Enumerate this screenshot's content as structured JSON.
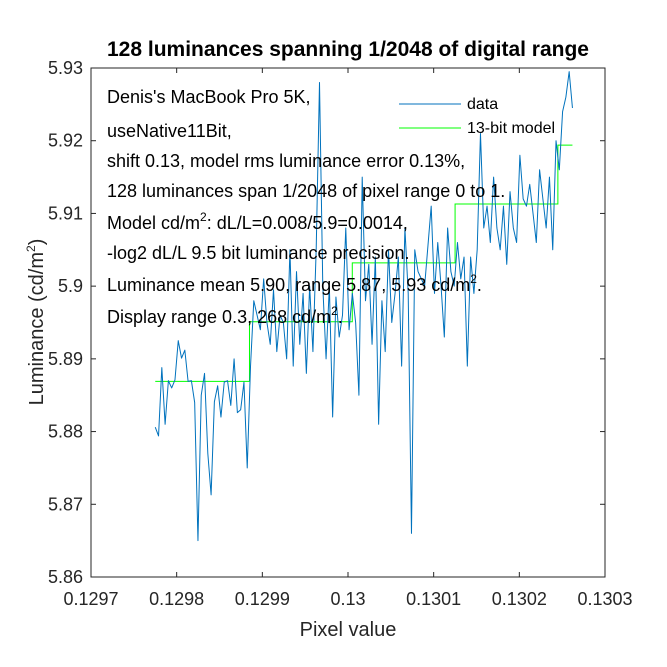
{
  "chart_data": {
    "type": "line",
    "title": "128 luminances spanning 1/2048 of digital range",
    "xlabel": "Pixel value",
    "ylabel_main": "Luminance (cd/m",
    "ylabel_sup": "2",
    "ylabel_tail": ")",
    "xlim": [
      0.1297,
      0.1303
    ],
    "ylim": [
      5.86,
      5.93
    ],
    "xticks": [
      0.1297,
      0.1298,
      0.1299,
      0.13,
      0.1301,
      0.1302,
      0.1303
    ],
    "xtick_labels": [
      "0.1297",
      "0.1298",
      "0.1299",
      "0.13",
      "0.1301",
      "0.1302",
      "0.1303"
    ],
    "yticks": [
      5.86,
      5.87,
      5.88,
      5.89,
      5.9,
      5.91,
      5.92,
      5.93
    ],
    "ytick_labels": [
      "5.86",
      "5.87",
      "5.88",
      "5.89",
      "5.9",
      "5.91",
      "5.92",
      "5.93"
    ],
    "grid": false,
    "legend_position": "top-right",
    "series": [
      {
        "name": "data",
        "color": "#0072bd",
        "x_start": 0.129775,
        "x_end": 0.130262,
        "values": [
          5.8806,
          5.8794,
          5.8888,
          5.881,
          5.887,
          5.886,
          5.8871,
          5.8925,
          5.8901,
          5.8912,
          5.8869,
          5.887,
          5.884,
          5.865,
          5.885,
          5.888,
          5.877,
          5.8713,
          5.8841,
          5.8863,
          5.882,
          5.8868,
          5.887,
          5.8836,
          5.89,
          5.8826,
          5.883,
          5.8868,
          5.875,
          5.889,
          5.898,
          5.896,
          5.894,
          5.901,
          5.895,
          5.892,
          5.8995,
          5.891,
          5.896,
          5.895,
          5.89,
          5.905,
          5.889,
          5.902,
          5.892,
          5.899,
          5.888,
          5.9,
          5.891,
          5.9052,
          5.928,
          5.9,
          5.89,
          5.9,
          5.882,
          5.8985,
          5.893,
          5.896,
          5.908,
          5.894,
          5.899,
          5.895,
          5.885,
          5.915,
          5.898,
          5.903,
          5.892,
          5.904,
          5.881,
          5.898,
          5.891,
          5.905,
          5.895,
          5.899,
          5.904,
          5.889,
          5.908,
          5.899,
          5.866,
          5.905,
          5.902,
          5.901,
          5.9,
          5.9055,
          5.911,
          5.899,
          5.906,
          5.9,
          5.893,
          5.908,
          5.902,
          5.9,
          5.906,
          5.901,
          5.904,
          5.889,
          5.904,
          5.899,
          5.905,
          5.921,
          5.908,
          5.911,
          5.906,
          5.915,
          5.908,
          5.905,
          5.911,
          5.903,
          5.913,
          5.908,
          5.906,
          5.918,
          5.912,
          5.911,
          5.914,
          5.91,
          5.906,
          5.916,
          5.912,
          5.908,
          5.915,
          5.905,
          5.92,
          5.916,
          5.924,
          5.926,
          5.9295,
          5.9245
        ]
      },
      {
        "name": "13-bit model",
        "color": "#00ff00",
        "steps": [
          {
            "x0": 0.129775,
            "x1": 0.129885,
            "y": 5.8869
          },
          {
            "x0": 0.129885,
            "x1": 0.130005,
            "y": 5.8951
          },
          {
            "x0": 0.130005,
            "x1": 0.130125,
            "y": 5.9032
          },
          {
            "x0": 0.130125,
            "x1": 0.130245,
            "y": 5.9113
          },
          {
            "x0": 0.130245,
            "x1": 0.130262,
            "y": 5.9194
          }
        ]
      }
    ]
  },
  "annotation": {
    "line1": "Denis's MacBook Pro 5K,",
    "line2": "useNative11Bit,",
    "line3": "shift 0.13, model rms luminance error 0.13%,",
    "line4": "128 luminances span 1/2048 of pixel range 0 to 1.",
    "line5_pre": "Model cd/m",
    "line5_sup": "2",
    "line5_post": ": dL/L=0.008/5.9=0.0014,",
    "line6": "-log2 dL/L 9.5 bit luminance precision.",
    "line7_pre": "Luminance mean 5.90, range 5.87, 5.93 cd/m",
    "line7_sup": "2",
    "line7_post": ".",
    "line8_pre": "Display range 0.3, 268 cd/m",
    "line8_sup": "2",
    "line8_post": "."
  }
}
